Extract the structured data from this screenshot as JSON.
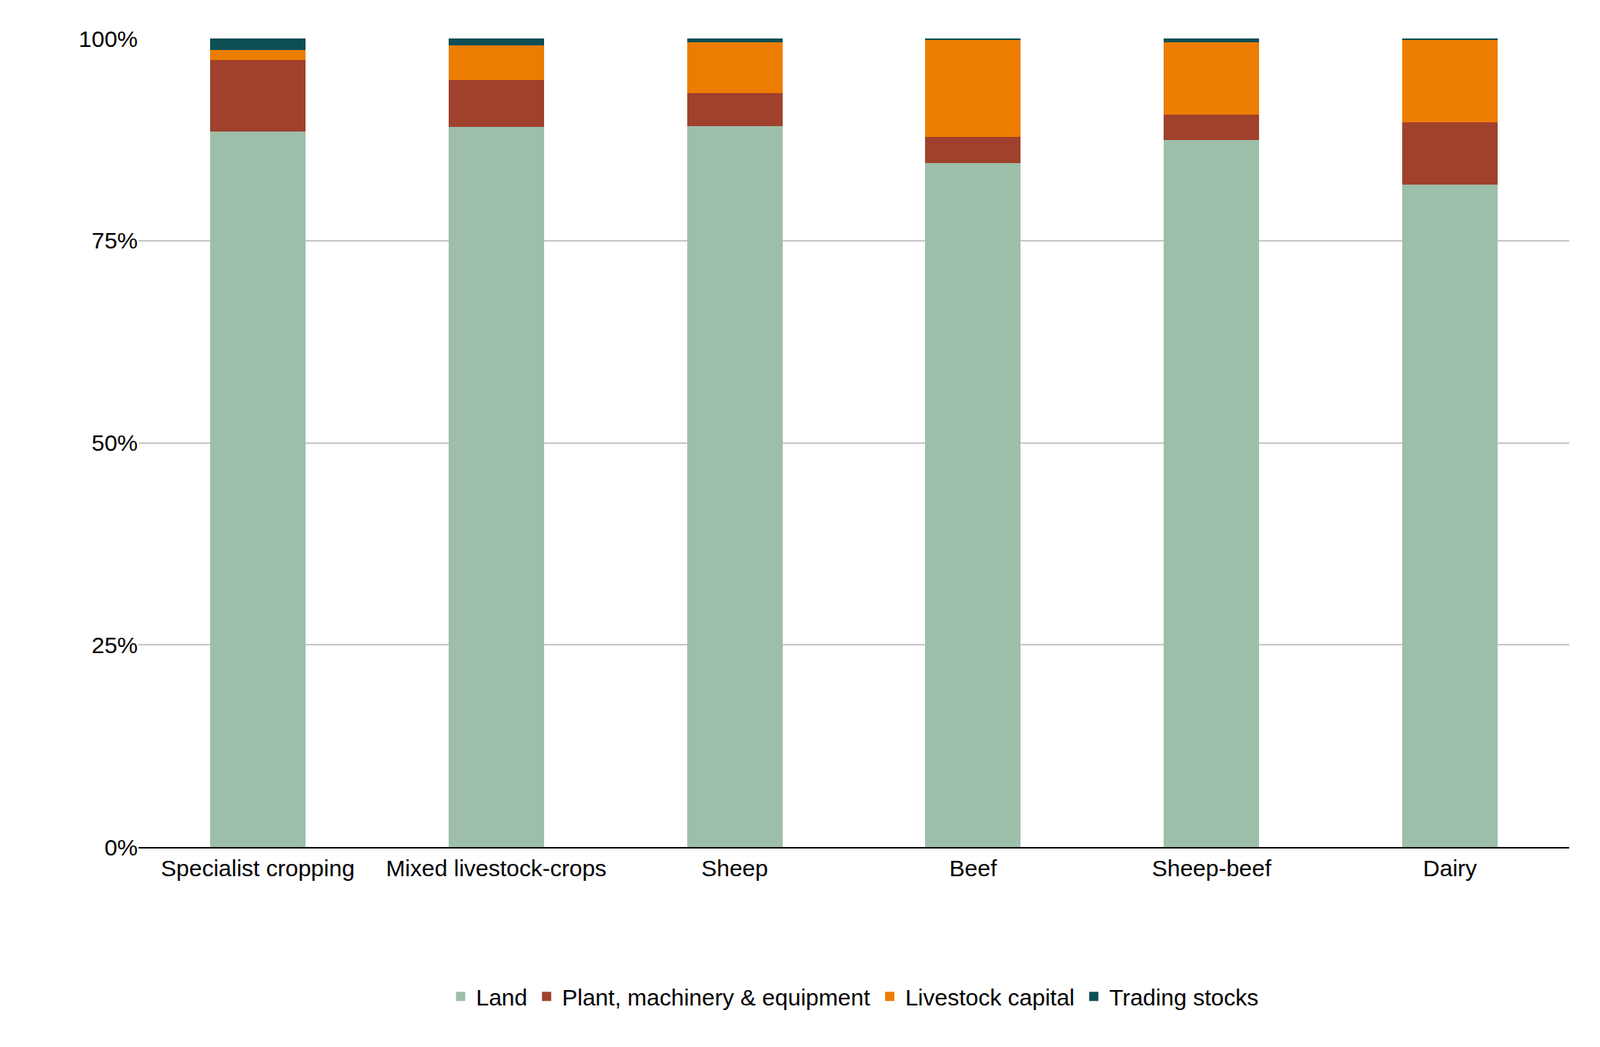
{
  "chart_data": {
    "type": "bar",
    "stacked": true,
    "grid": true,
    "legend": "bottom",
    "categories": [
      "Specialist cropping",
      "Mixed livestock-crops",
      "Sheep",
      "Beef",
      "Sheep-beef",
      "Dairy"
    ],
    "series": [
      {
        "name": "Land",
        "color": "#9dbfaa",
        "values": [
          88.5,
          89.1,
          89.2,
          84.6,
          87.4,
          81.9
        ]
      },
      {
        "name": "Plant, machinery & equipment",
        "color": "#a0412d",
        "values": [
          8.8,
          5.8,
          4.0,
          3.2,
          3.2,
          7.7
        ]
      },
      {
        "name": "Livestock capital",
        "color": "#ed7d00",
        "values": [
          1.3,
          4.2,
          6.3,
          12.1,
          8.9,
          10.3
        ]
      },
      {
        "name": "Trading stocks",
        "color": "#0d4f55",
        "values": [
          1.4,
          0.9,
          0.5,
          0.1,
          0.5,
          0.1
        ]
      }
    ],
    "ylim": [
      0,
      100
    ],
    "yticks": [
      {
        "value": 0,
        "label": "0%"
      },
      {
        "value": 25,
        "label": "25%"
      },
      {
        "value": 50,
        "label": "50%"
      },
      {
        "value": 75,
        "label": "75%"
      },
      {
        "value": 100,
        "label": "100%"
      }
    ]
  }
}
